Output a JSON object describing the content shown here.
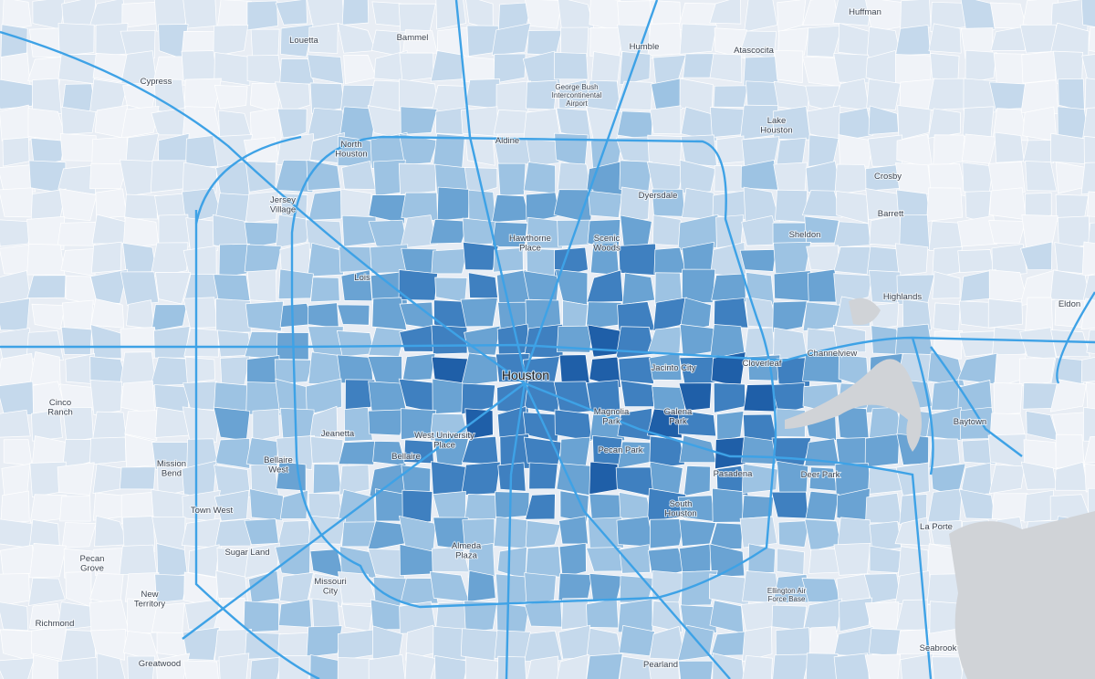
{
  "places": [
    {
      "lines": [
        "Huffman"
      ]
    },
    {
      "lines": [
        "Louetta"
      ]
    },
    {
      "lines": [
        "Bammel"
      ]
    },
    {
      "lines": [
        "Humble"
      ]
    },
    {
      "lines": [
        "Atascocita"
      ]
    },
    {
      "lines": [
        "Cypress"
      ]
    },
    {
      "lines": [
        "George Bush",
        "Intercontinental",
        "Airport"
      ]
    },
    {
      "lines": [
        "Lake",
        "Houston"
      ]
    },
    {
      "lines": [
        "Aldine"
      ]
    },
    {
      "lines": [
        "North",
        "Houston"
      ]
    },
    {
      "lines": [
        "Crosby"
      ]
    },
    {
      "lines": [
        "Dyersdale"
      ]
    },
    {
      "lines": [
        "Jersey",
        "Village"
      ]
    },
    {
      "lines": [
        "Barrett"
      ]
    },
    {
      "lines": [
        "Hawthorne",
        "Place"
      ]
    },
    {
      "lines": [
        "Scenic",
        "Woods"
      ]
    },
    {
      "lines": [
        "Sheldon"
      ]
    },
    {
      "lines": [
        "Lois"
      ]
    },
    {
      "lines": [
        "Highlands"
      ]
    },
    {
      "lines": [
        "Eldon"
      ]
    },
    {
      "lines": [
        "Channelview"
      ]
    },
    {
      "lines": [
        "Houston"
      ]
    },
    {
      "lines": [
        "Jacinto City"
      ]
    },
    {
      "lines": [
        "Cloverleaf"
      ]
    },
    {
      "lines": [
        "Cinco",
        "Ranch"
      ]
    },
    {
      "lines": [
        "Magnolia",
        "Park"
      ]
    },
    {
      "lines": [
        "Galena",
        "Park"
      ]
    },
    {
      "lines": [
        "Baytown"
      ]
    },
    {
      "lines": [
        "Jeanetta"
      ]
    },
    {
      "lines": [
        "West University",
        "Place"
      ]
    },
    {
      "lines": [
        "Bellaire"
      ]
    },
    {
      "lines": [
        "Pecan Park"
      ]
    },
    {
      "lines": [
        "Mission",
        "Bend"
      ]
    },
    {
      "lines": [
        "Bellaire",
        "West"
      ]
    },
    {
      "lines": [
        "Pasadena"
      ]
    },
    {
      "lines": [
        "Deer Park"
      ]
    },
    {
      "lines": [
        "South",
        "Houston"
      ]
    },
    {
      "lines": [
        "Town West"
      ]
    },
    {
      "lines": [
        "La Porte"
      ]
    },
    {
      "lines": [
        "Sugar Land"
      ]
    },
    {
      "lines": [
        "Almeda",
        "Plaza"
      ]
    },
    {
      "lines": [
        "Pecan",
        "Grove"
      ]
    },
    {
      "lines": [
        "Missouri",
        "City"
      ]
    },
    {
      "lines": [
        "Ellington Air",
        "Force Base"
      ]
    },
    {
      "lines": [
        "New",
        "Territory"
      ]
    },
    {
      "lines": [
        "Richmond"
      ]
    },
    {
      "lines": [
        "Seabrook"
      ]
    },
    {
      "lines": [
        "Greatwood"
      ]
    },
    {
      "lines": [
        "Pearland"
      ]
    }
  ]
}
